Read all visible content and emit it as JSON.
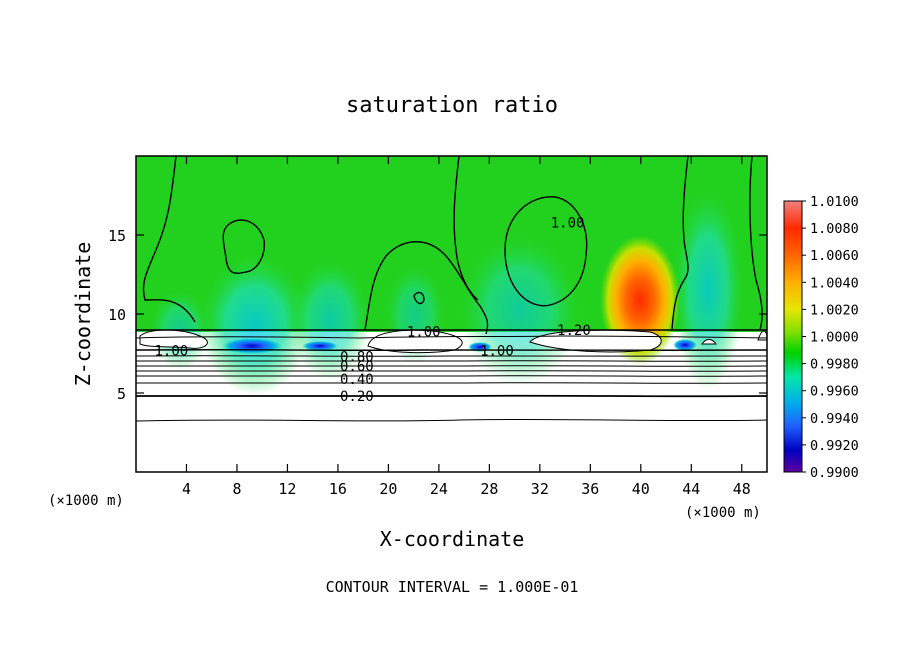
{
  "chart_data": {
    "type": "heatmap",
    "title": "saturation ratio",
    "xlabel": "X-coordinate",
    "ylabel": "Z-coordinate",
    "x_unit_left": "(×1000 m)",
    "x_unit_right": "(×1000 m)",
    "xlim": [
      0,
      50
    ],
    "ylim": [
      0,
      20
    ],
    "xticks": [
      "4",
      "8",
      "12",
      "16",
      "20",
      "24",
      "28",
      "32",
      "36",
      "40",
      "44",
      "48"
    ],
    "yticks": [
      "5",
      "10",
      "15"
    ],
    "footer": "CONTOUR INTERVAL = 1.000E-01",
    "colorbar": {
      "levels": [
        "1.0100",
        "1.0080",
        "1.0060",
        "1.0040",
        "1.0020",
        "1.0000",
        "0.9980",
        "0.9960",
        "0.9940",
        "0.9920",
        "0.9900"
      ],
      "colors": [
        "#f08080",
        "#ff2a00",
        "#ff6600",
        "#ffb000",
        "#e6e600",
        "#86e000",
        "#00d000",
        "#00e6a8",
        "#00b0e8",
        "#2060ff",
        "#0000c0",
        "#6000a0"
      ]
    },
    "contour_labels": [
      {
        "text": "1.00",
        "x": 2.8,
        "y": 7.7
      },
      {
        "text": "1.00",
        "x": 22.8,
        "y": 8.9
      },
      {
        "text": "1.00",
        "x": 34.2,
        "y": 15.8
      },
      {
        "text": "1.00",
        "x": 28.6,
        "y": 7.7
      },
      {
        "text": "1.20",
        "x": 34.7,
        "y": 9.0
      },
      {
        "text": "0.80",
        "x": 17.5,
        "y": 7.3
      },
      {
        "text": "0.60",
        "x": 17.5,
        "y": 6.7
      },
      {
        "text": "0.40",
        "x": 17.5,
        "y": 5.9
      },
      {
        "text": "0.20",
        "x": 17.5,
        "y": 4.8
      }
    ]
  }
}
